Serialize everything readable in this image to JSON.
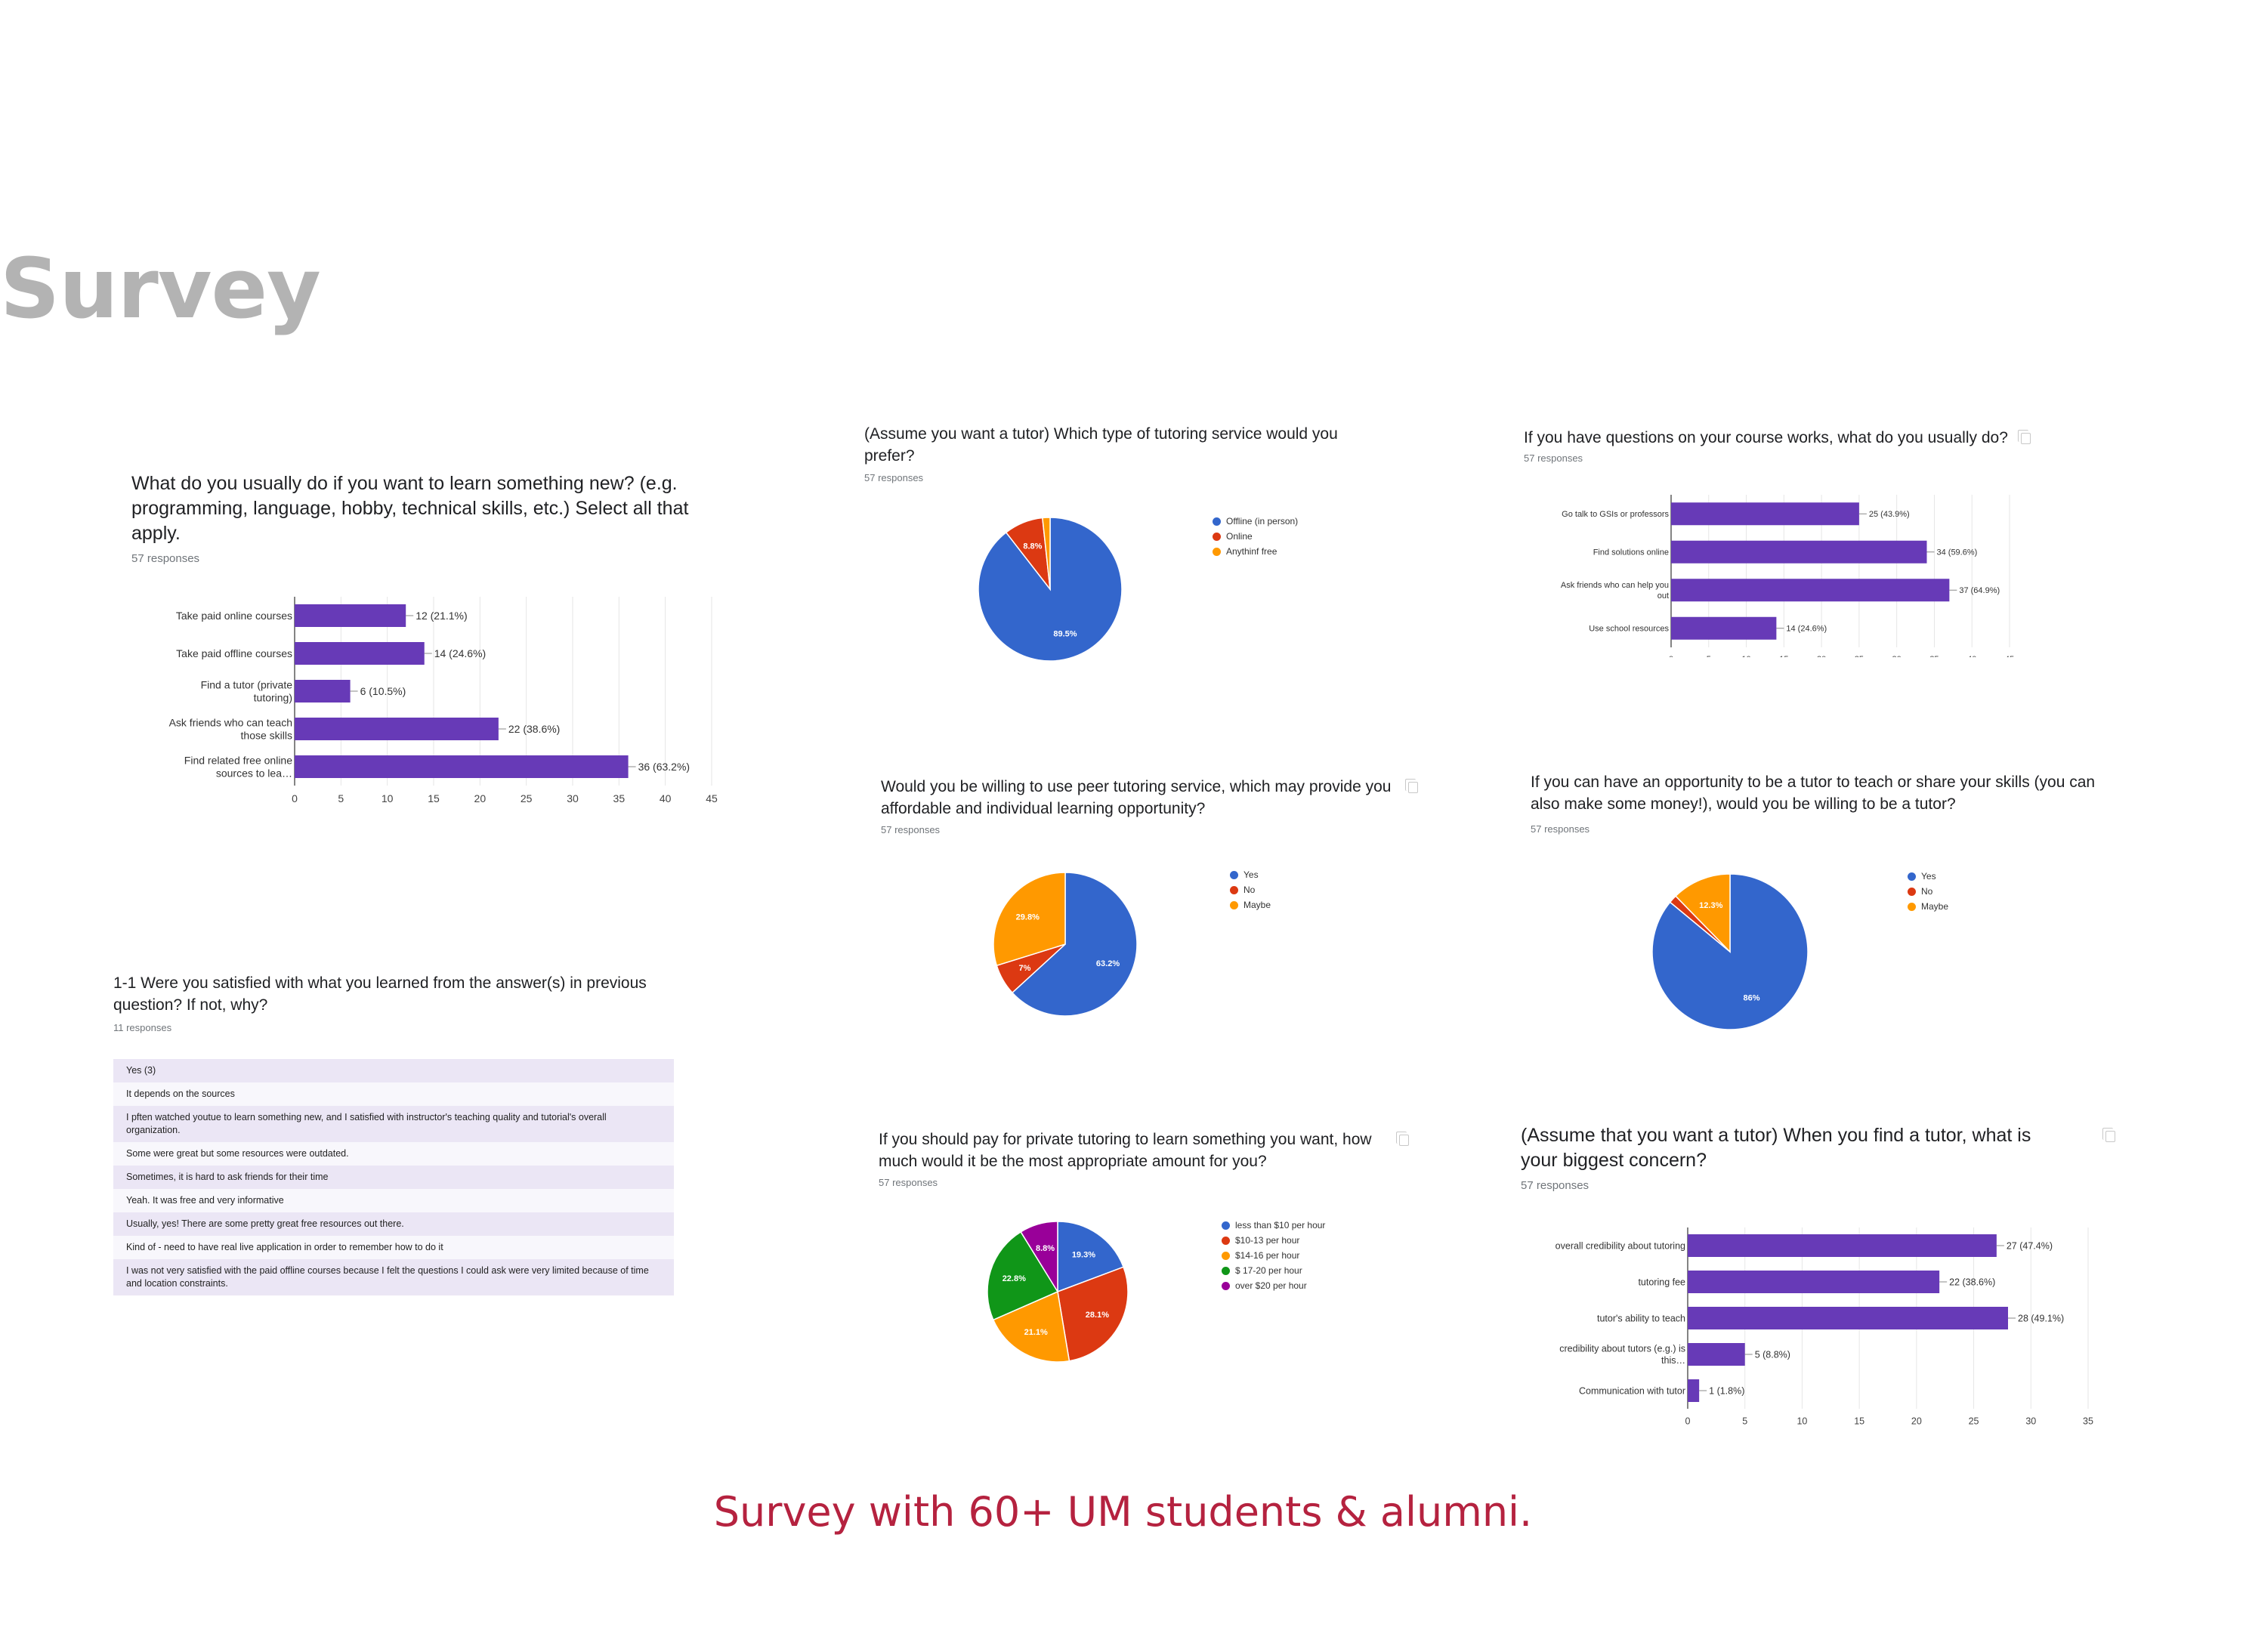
{
  "slide": {
    "title": "Survey",
    "caption": "Survey with 60+ UM students & alumni."
  },
  "colors": {
    "bar": "#673ab7",
    "blue": "#3366cc",
    "red": "#dc3912",
    "orange": "#ff9900",
    "green": "#109618",
    "purple": "#990099",
    "title_gray": "#b3b3b3",
    "caption_red": "#b5223f"
  },
  "icons": [
    "copy-icon"
  ],
  "text_response": {
    "question": "1-1 Were you satisfied with what you learned from the answer(s) in previous question? If not, why?",
    "responses_label": "11 responses",
    "answers": [
      "Yes (3)",
      "It depends on the sources",
      "I pften watched youtue to learn something new, and I satisfied with instructor's teaching quality and tutorial's overall organization.",
      "Some were great but some resources were outdated.",
      "Sometimes, it is hard to ask friends for their time",
      "Yeah. It was free and very informative",
      "Usually, yes! There are some pretty great free resources out there.",
      "Kind of - need to have real live application in order to remember how to do it",
      "I was not very satisfied with the paid offline courses because I felt the questions I could ask were very limited because of time and location constraints."
    ]
  },
  "chart_data": [
    {
      "id": "q_learn",
      "type": "bar",
      "orientation": "horizontal",
      "title": "What do you usually do if you want to learn something new? (e.g. programming, language, hobby, technical skills, etc.) Select all that apply.",
      "responses_label": "57 responses",
      "categories": [
        "Take paid online courses",
        "Take paid offline courses",
        "Find a tutor (private tutoring)",
        "Ask friends who can teach those skills",
        "Find related free online sources to lea…"
      ],
      "values": [
        12,
        14,
        6,
        22,
        36
      ],
      "data_labels": [
        "12 (21.1%)",
        "14 (24.6%)",
        "6 (10.5%)",
        "22 (38.6%)",
        "36 (63.2%)"
      ],
      "xlim": [
        0,
        45
      ],
      "xticks": [
        "0",
        "5",
        "10",
        "15",
        "20",
        "25",
        "30",
        "35",
        "40",
        "45"
      ],
      "grid": true
    },
    {
      "id": "q_type",
      "type": "pie",
      "title": "(Assume you want a tutor) Which type of tutoring service would you prefer?",
      "responses_label": "57 responses",
      "labels": [
        "Offline (in person)",
        "Online",
        "Anythinf free"
      ],
      "values": [
        89.5,
        8.8,
        1.7
      ],
      "slice_labels": [
        "89.5%",
        "8.8%",
        ""
      ],
      "colors": [
        "#3366cc",
        "#dc3912",
        "#ff9900"
      ],
      "legend_position": "right"
    },
    {
      "id": "q_coursework",
      "type": "bar",
      "orientation": "horizontal",
      "title": "If you have questions on your course works, what do you usually do?",
      "responses_label": "57 responses",
      "categories": [
        "Go talk to GSIs or professors",
        "Find solutions online",
        "Ask friends who can help you out",
        "Use school resources"
      ],
      "values": [
        25,
        34,
        37,
        14
      ],
      "data_labels": [
        "25 (43.9%)",
        "34 (59.6%)",
        "37 (64.9%)",
        "14 (24.6%)"
      ],
      "xlim": [
        0,
        45
      ],
      "xticks": [
        "0",
        "5",
        "10",
        "15",
        "20",
        "25",
        "30",
        "35",
        "40",
        "45"
      ],
      "grid": true
    },
    {
      "id": "q_peer",
      "type": "pie",
      "title": "Would you be willing to use peer tutoring service, which may provide you affordable and individual learning opportunity?",
      "responses_label": "57 responses",
      "labels": [
        "Yes",
        "No",
        "Maybe"
      ],
      "values": [
        63.2,
        7,
        29.8
      ],
      "slice_labels": [
        "63.2%",
        "7%",
        "29.8%"
      ],
      "colors": [
        "#3366cc",
        "#dc3912",
        "#ff9900"
      ],
      "legend_position": "right"
    },
    {
      "id": "q_be_tutor",
      "type": "pie",
      "title": "If you can have an opportunity to be a tutor to teach or share your skills (you can also make some money!), would you be willing to be a tutor?",
      "responses_label": "57 responses",
      "labels": [
        "Yes",
        "No",
        "Maybe"
      ],
      "values": [
        86,
        1.7,
        12.3
      ],
      "slice_labels": [
        "86%",
        "",
        "12.3%"
      ],
      "colors": [
        "#3366cc",
        "#dc3912",
        "#ff9900"
      ],
      "legend_position": "right"
    },
    {
      "id": "q_price",
      "type": "pie",
      "title": "If you should pay for private tutoring to learn something you want, how much would it be the most appropriate amount for you?",
      "responses_label": "57 responses",
      "labels": [
        "less than $10 per hour",
        "$10-13 per hour",
        "$14-16 per hour",
        "$ 17-20 per hour",
        "over $20 per hour"
      ],
      "values": [
        19.3,
        28.1,
        21.1,
        22.8,
        8.8
      ],
      "slice_labels": [
        "19.3%",
        "28.1%",
        "21.1%",
        "22.8%",
        "8.8%"
      ],
      "colors": [
        "#3366cc",
        "#dc3912",
        "#ff9900",
        "#109618",
        "#990099"
      ],
      "legend_position": "right"
    },
    {
      "id": "q_concern",
      "type": "bar",
      "orientation": "horizontal",
      "title": "(Assume that you want a tutor) When you find a tutor, what is your biggest concern?",
      "responses_label": "57 responses",
      "categories": [
        "overall credibility about tutoring",
        "tutoring fee",
        "tutor's ability to teach",
        "credibility about tutors (e.g.) is this…",
        "Communication with tutor"
      ],
      "values": [
        27,
        22,
        28,
        5,
        1
      ],
      "data_labels": [
        "27 (47.4%)",
        "22 (38.6%)",
        "28 (49.1%)",
        "5 (8.8%)",
        "1 (1.8%)"
      ],
      "xlim": [
        0,
        35
      ],
      "xticks": [
        "0",
        "5",
        "10",
        "15",
        "20",
        "25",
        "30",
        "35"
      ],
      "grid": true
    }
  ]
}
